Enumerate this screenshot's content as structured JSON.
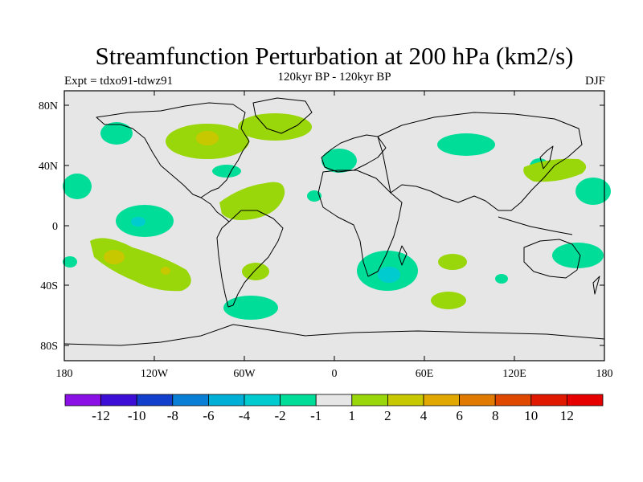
{
  "header": {
    "title": "Streamfunction Perturbation at 200 hPa (km2/s)",
    "expt": "Expt = tdxo91-tdwz91",
    "subtitle": "120kyr BP - 120kyr BP",
    "season": "DJF"
  },
  "map": {
    "lat_ticks": [
      "80N",
      "40N",
      "0",
      "40S",
      "80S"
    ],
    "lon_ticks": [
      "180",
      "120W",
      "60W",
      "0",
      "60E",
      "120E",
      "180"
    ],
    "ocean_color": "#e6e6e6",
    "coast_color": "#000000"
  },
  "colorbar": {
    "labels": [
      "-12",
      "-10",
      "-8",
      "-6",
      "-4",
      "-2",
      "-1",
      "1",
      "2",
      "4",
      "6",
      "8",
      "10",
      "12"
    ],
    "colors": [
      "#8a10e6",
      "#3d0fd6",
      "#1240cc",
      "#0a7fd6",
      "#00afd6",
      "#00ccd0",
      "#00dd99",
      "#e6e6e6",
      "#99d60a",
      "#c8c800",
      "#e0a800",
      "#e07a00",
      "#e04800",
      "#e01800",
      "#e60000"
    ]
  }
}
